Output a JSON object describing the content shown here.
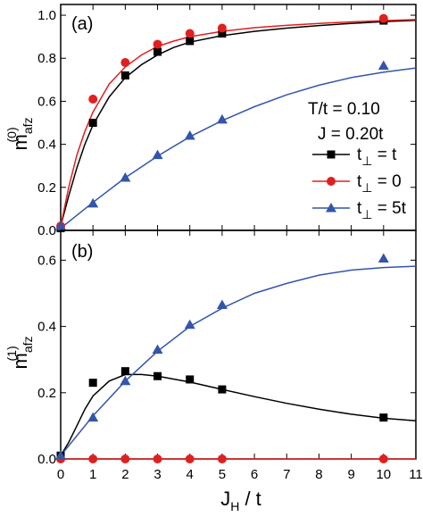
{
  "chart_data": [
    {
      "type": "line",
      "panel_label": "(a)",
      "ylabel": "m",
      "ylabel_sub": "afz",
      "ylabel_sup": "(0)",
      "xlim": [
        0,
        11
      ],
      "ylim": [
        0.0,
        1.05
      ],
      "xticks": [
        0,
        1,
        2,
        3,
        4,
        5,
        6,
        7,
        8,
        9,
        10,
        11
      ],
      "yticks": [
        "0.0",
        "0.2",
        "0.4",
        "0.6",
        "0.8",
        "1.0"
      ],
      "annotations": [
        "T/t = 0.10",
        "J = 0.20t"
      ],
      "legend_position": "right",
      "series": [
        {
          "name": "t⊥ = t",
          "legend_base": "t",
          "legend_sub": "⊥",
          "legend_rest": " = t",
          "color": "#000000",
          "marker": "square",
          "points": [
            [
              0,
              0.01
            ],
            [
              1,
              0.5
            ],
            [
              2,
              0.72
            ],
            [
              3,
              0.83
            ],
            [
              4,
              0.88
            ],
            [
              5,
              0.915
            ],
            [
              10,
              0.975
            ]
          ],
          "fit": [
            [
              0,
              0.02
            ],
            [
              0.25,
              0.16
            ],
            [
              0.5,
              0.29
            ],
            [
              0.75,
              0.4
            ],
            [
              1,
              0.49
            ],
            [
              1.5,
              0.62
            ],
            [
              2,
              0.71
            ],
            [
              2.5,
              0.77
            ],
            [
              3,
              0.815
            ],
            [
              3.5,
              0.85
            ],
            [
              4,
              0.875
            ],
            [
              5,
              0.905
            ],
            [
              6,
              0.925
            ],
            [
              7,
              0.94
            ],
            [
              8,
              0.952
            ],
            [
              9,
              0.962
            ],
            [
              10,
              0.97
            ],
            [
              11,
              0.976
            ]
          ]
        },
        {
          "name": "t⊥ = 0",
          "legend_base": "t",
          "legend_sub": "⊥",
          "legend_rest": " = 0",
          "color": "#e02020",
          "marker": "circle",
          "points": [
            [
              0,
              0.02
            ],
            [
              1,
              0.61
            ],
            [
              2,
              0.78
            ],
            [
              3,
              0.865
            ],
            [
              4,
              0.915
            ],
            [
              5,
              0.94
            ],
            [
              10,
              0.985
            ]
          ],
          "fit": [
            [
              0,
              0.02
            ],
            [
              0.25,
              0.2
            ],
            [
              0.5,
              0.35
            ],
            [
              0.75,
              0.46
            ],
            [
              1,
              0.55
            ],
            [
              1.5,
              0.68
            ],
            [
              2,
              0.76
            ],
            [
              2.5,
              0.815
            ],
            [
              3,
              0.855
            ],
            [
              3.5,
              0.88
            ],
            [
              4,
              0.9
            ],
            [
              5,
              0.925
            ],
            [
              6,
              0.942
            ],
            [
              7,
              0.953
            ],
            [
              8,
              0.962
            ],
            [
              9,
              0.969
            ],
            [
              10,
              0.975
            ],
            [
              11,
              0.98
            ]
          ]
        },
        {
          "name": "t⊥ = 5t",
          "legend_base": "t",
          "legend_sub": "⊥",
          "legend_rest": " = 5t",
          "color": "#3355aa",
          "marker": "triangle",
          "points": [
            [
              0,
              0.02
            ],
            [
              1,
              0.125
            ],
            [
              2,
              0.245
            ],
            [
              3,
              0.35
            ],
            [
              4,
              0.44
            ],
            [
              5,
              0.515
            ],
            [
              10,
              0.765
            ]
          ],
          "fit": [
            [
              0,
              0.01
            ],
            [
              1,
              0.13
            ],
            [
              2,
              0.245
            ],
            [
              3,
              0.345
            ],
            [
              4,
              0.435
            ],
            [
              5,
              0.51
            ],
            [
              6,
              0.575
            ],
            [
              7,
              0.63
            ],
            [
              8,
              0.675
            ],
            [
              9,
              0.71
            ],
            [
              10,
              0.735
            ],
            [
              11,
              0.755
            ]
          ]
        }
      ]
    },
    {
      "type": "line",
      "panel_label": "(b)",
      "ylabel": "m",
      "ylabel_sub": "afz",
      "ylabel_sup": "(1)",
      "xlabel_main": "J",
      "xlabel_sub": "H",
      "xlabel_rest": " / t",
      "xlim": [
        0,
        11
      ],
      "ylim": [
        0.0,
        0.69
      ],
      "xticks": [
        0,
        1,
        2,
        3,
        4,
        5,
        6,
        7,
        8,
        9,
        10,
        11
      ],
      "yticks": [
        "0.0",
        "0.2",
        "0.4",
        "0.6"
      ],
      "series": [
        {
          "color": "#000000",
          "marker": "square",
          "points": [
            [
              0,
              0.01
            ],
            [
              1,
              0.23
            ],
            [
              2,
              0.265
            ],
            [
              3,
              0.25
            ],
            [
              4,
              0.24
            ],
            [
              5,
              0.21
            ],
            [
              10,
              0.125
            ]
          ],
          "fit": [
            [
              0,
              0.01
            ],
            [
              0.25,
              0.05
            ],
            [
              0.5,
              0.1
            ],
            [
              0.75,
              0.15
            ],
            [
              1,
              0.19
            ],
            [
              1.5,
              0.235
            ],
            [
              2,
              0.255
            ],
            [
              2.5,
              0.255
            ],
            [
              3,
              0.25
            ],
            [
              4,
              0.232
            ],
            [
              5,
              0.21
            ],
            [
              6,
              0.188
            ],
            [
              7,
              0.168
            ],
            [
              8,
              0.15
            ],
            [
              9,
              0.135
            ],
            [
              10,
              0.123
            ],
            [
              11,
              0.115
            ]
          ]
        },
        {
          "color": "#e02020",
          "marker": "circle",
          "points": [
            [
              0,
              0.0
            ],
            [
              1,
              0.0
            ],
            [
              2,
              0.0
            ],
            [
              3,
              0.0
            ],
            [
              4,
              0.0
            ],
            [
              5,
              0.0
            ],
            [
              10,
              0.0
            ]
          ],
          "fit": [
            [
              0,
              0.0
            ],
            [
              11,
              0.0
            ]
          ]
        },
        {
          "color": "#3355aa",
          "marker": "triangle",
          "points": [
            [
              0,
              0.01
            ],
            [
              1,
              0.125
            ],
            [
              2,
              0.235
            ],
            [
              3,
              0.33
            ],
            [
              4,
              0.405
            ],
            [
              5,
              0.465
            ],
            [
              10,
              0.605
            ]
          ],
          "fit": [
            [
              0,
              0.01
            ],
            [
              1,
              0.13
            ],
            [
              2,
              0.235
            ],
            [
              3,
              0.325
            ],
            [
              4,
              0.4
            ],
            [
              5,
              0.455
            ],
            [
              6,
              0.5
            ],
            [
              7,
              0.53
            ],
            [
              8,
              0.555
            ],
            [
              9,
              0.57
            ],
            [
              10,
              0.578
            ],
            [
              11,
              0.582
            ]
          ]
        }
      ]
    }
  ]
}
